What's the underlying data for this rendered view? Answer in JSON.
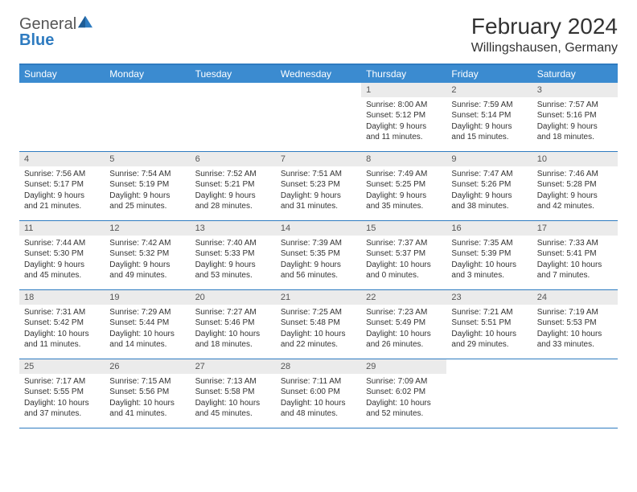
{
  "logo": {
    "text_gray": "General",
    "text_blue": "Blue",
    "triangle_color": "#2e7bc0"
  },
  "header": {
    "month_title": "February 2024",
    "location": "Willingshausen, Germany"
  },
  "colors": {
    "header_bg": "#3b8bd0",
    "border": "#2e7bc0",
    "daynum_bg": "#ebebeb",
    "text": "#333333"
  },
  "weekdays": [
    "Sunday",
    "Monday",
    "Tuesday",
    "Wednesday",
    "Thursday",
    "Friday",
    "Saturday"
  ],
  "weeks": [
    [
      null,
      null,
      null,
      null,
      {
        "n": "1",
        "sr": "Sunrise: 8:00 AM",
        "ss": "Sunset: 5:12 PM",
        "dl": "Daylight: 9 hours and 11 minutes."
      },
      {
        "n": "2",
        "sr": "Sunrise: 7:59 AM",
        "ss": "Sunset: 5:14 PM",
        "dl": "Daylight: 9 hours and 15 minutes."
      },
      {
        "n": "3",
        "sr": "Sunrise: 7:57 AM",
        "ss": "Sunset: 5:16 PM",
        "dl": "Daylight: 9 hours and 18 minutes."
      }
    ],
    [
      {
        "n": "4",
        "sr": "Sunrise: 7:56 AM",
        "ss": "Sunset: 5:17 PM",
        "dl": "Daylight: 9 hours and 21 minutes."
      },
      {
        "n": "5",
        "sr": "Sunrise: 7:54 AM",
        "ss": "Sunset: 5:19 PM",
        "dl": "Daylight: 9 hours and 25 minutes."
      },
      {
        "n": "6",
        "sr": "Sunrise: 7:52 AM",
        "ss": "Sunset: 5:21 PM",
        "dl": "Daylight: 9 hours and 28 minutes."
      },
      {
        "n": "7",
        "sr": "Sunrise: 7:51 AM",
        "ss": "Sunset: 5:23 PM",
        "dl": "Daylight: 9 hours and 31 minutes."
      },
      {
        "n": "8",
        "sr": "Sunrise: 7:49 AM",
        "ss": "Sunset: 5:25 PM",
        "dl": "Daylight: 9 hours and 35 minutes."
      },
      {
        "n": "9",
        "sr": "Sunrise: 7:47 AM",
        "ss": "Sunset: 5:26 PM",
        "dl": "Daylight: 9 hours and 38 minutes."
      },
      {
        "n": "10",
        "sr": "Sunrise: 7:46 AM",
        "ss": "Sunset: 5:28 PM",
        "dl": "Daylight: 9 hours and 42 minutes."
      }
    ],
    [
      {
        "n": "11",
        "sr": "Sunrise: 7:44 AM",
        "ss": "Sunset: 5:30 PM",
        "dl": "Daylight: 9 hours and 45 minutes."
      },
      {
        "n": "12",
        "sr": "Sunrise: 7:42 AM",
        "ss": "Sunset: 5:32 PM",
        "dl": "Daylight: 9 hours and 49 minutes."
      },
      {
        "n": "13",
        "sr": "Sunrise: 7:40 AM",
        "ss": "Sunset: 5:33 PM",
        "dl": "Daylight: 9 hours and 53 minutes."
      },
      {
        "n": "14",
        "sr": "Sunrise: 7:39 AM",
        "ss": "Sunset: 5:35 PM",
        "dl": "Daylight: 9 hours and 56 minutes."
      },
      {
        "n": "15",
        "sr": "Sunrise: 7:37 AM",
        "ss": "Sunset: 5:37 PM",
        "dl": "Daylight: 10 hours and 0 minutes."
      },
      {
        "n": "16",
        "sr": "Sunrise: 7:35 AM",
        "ss": "Sunset: 5:39 PM",
        "dl": "Daylight: 10 hours and 3 minutes."
      },
      {
        "n": "17",
        "sr": "Sunrise: 7:33 AM",
        "ss": "Sunset: 5:41 PM",
        "dl": "Daylight: 10 hours and 7 minutes."
      }
    ],
    [
      {
        "n": "18",
        "sr": "Sunrise: 7:31 AM",
        "ss": "Sunset: 5:42 PM",
        "dl": "Daylight: 10 hours and 11 minutes."
      },
      {
        "n": "19",
        "sr": "Sunrise: 7:29 AM",
        "ss": "Sunset: 5:44 PM",
        "dl": "Daylight: 10 hours and 14 minutes."
      },
      {
        "n": "20",
        "sr": "Sunrise: 7:27 AM",
        "ss": "Sunset: 5:46 PM",
        "dl": "Daylight: 10 hours and 18 minutes."
      },
      {
        "n": "21",
        "sr": "Sunrise: 7:25 AM",
        "ss": "Sunset: 5:48 PM",
        "dl": "Daylight: 10 hours and 22 minutes."
      },
      {
        "n": "22",
        "sr": "Sunrise: 7:23 AM",
        "ss": "Sunset: 5:49 PM",
        "dl": "Daylight: 10 hours and 26 minutes."
      },
      {
        "n": "23",
        "sr": "Sunrise: 7:21 AM",
        "ss": "Sunset: 5:51 PM",
        "dl": "Daylight: 10 hours and 29 minutes."
      },
      {
        "n": "24",
        "sr": "Sunrise: 7:19 AM",
        "ss": "Sunset: 5:53 PM",
        "dl": "Daylight: 10 hours and 33 minutes."
      }
    ],
    [
      {
        "n": "25",
        "sr": "Sunrise: 7:17 AM",
        "ss": "Sunset: 5:55 PM",
        "dl": "Daylight: 10 hours and 37 minutes."
      },
      {
        "n": "26",
        "sr": "Sunrise: 7:15 AM",
        "ss": "Sunset: 5:56 PM",
        "dl": "Daylight: 10 hours and 41 minutes."
      },
      {
        "n": "27",
        "sr": "Sunrise: 7:13 AM",
        "ss": "Sunset: 5:58 PM",
        "dl": "Daylight: 10 hours and 45 minutes."
      },
      {
        "n": "28",
        "sr": "Sunrise: 7:11 AM",
        "ss": "Sunset: 6:00 PM",
        "dl": "Daylight: 10 hours and 48 minutes."
      },
      {
        "n": "29",
        "sr": "Sunrise: 7:09 AM",
        "ss": "Sunset: 6:02 PM",
        "dl": "Daylight: 10 hours and 52 minutes."
      },
      null,
      null
    ]
  ]
}
